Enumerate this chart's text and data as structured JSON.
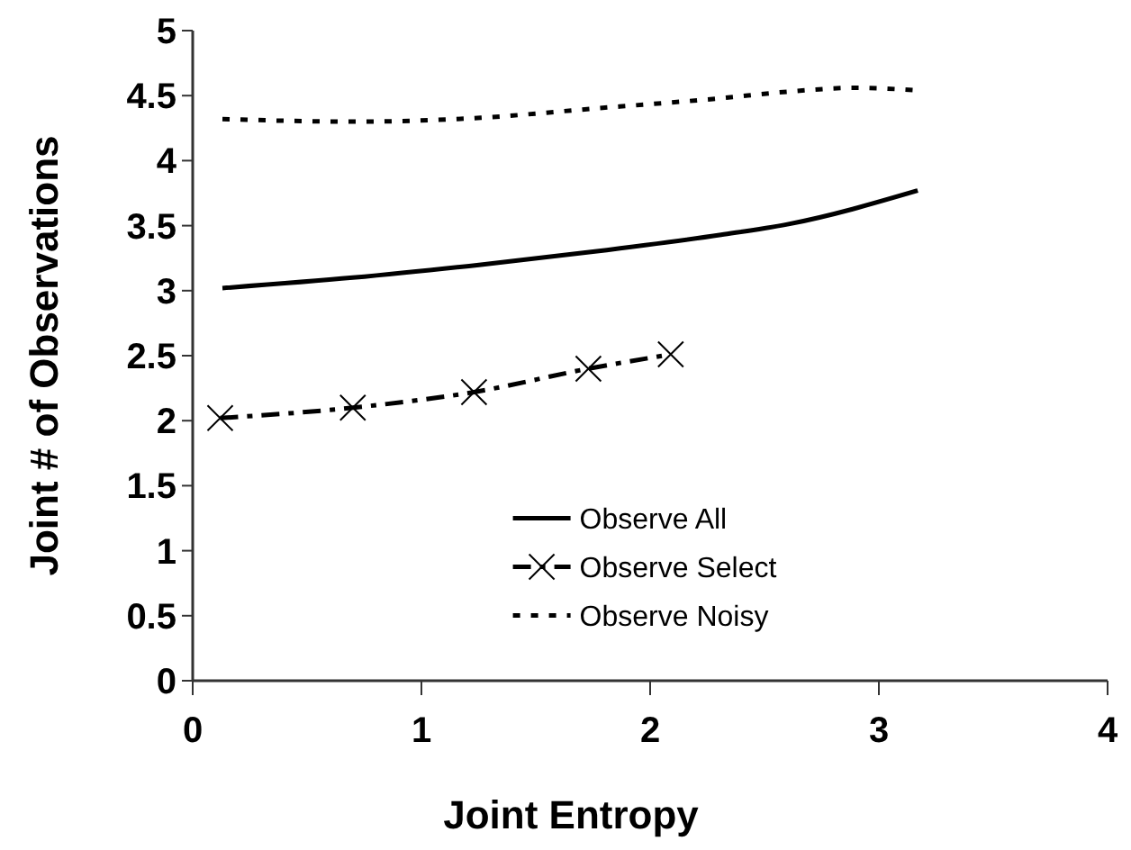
{
  "chart_data": {
    "type": "line",
    "xlabel": "Joint Entropy",
    "ylabel": "Joint # of Observations",
    "xlim": [
      0,
      4
    ],
    "xticks": [
      0,
      1,
      2,
      3,
      4
    ],
    "ylim": [
      0,
      5
    ],
    "yticks": [
      0,
      0.5,
      1,
      1.5,
      2,
      2.5,
      3,
      3.5,
      4,
      4.5,
      5
    ],
    "grid": false,
    "legend": "bottom",
    "series": [
      {
        "name": "Observe All",
        "color": "#000000",
        "line_style": "solid",
        "marker": "none",
        "x": [
          0.13,
          0.7,
          1.26,
          1.75,
          2.31,
          2.6,
          3.17
        ],
        "values": [
          3.02,
          3.1,
          3.2,
          3.3,
          3.43,
          3.51,
          3.77
        ]
      },
      {
        "name": "Observe Select",
        "color": "#000000",
        "line_style": "dashdot",
        "marker": "cross",
        "x": [
          0.12,
          0.7,
          1.23,
          1.73,
          2.09
        ],
        "values": [
          2.02,
          2.1,
          2.22,
          2.4,
          2.51
        ]
      },
      {
        "name": "Observe Noisy",
        "color": "#000000",
        "line_style": "dotted",
        "marker": "none",
        "x": [
          0.13,
          0.7,
          1.26,
          1.75,
          2.31,
          2.6,
          2.9,
          3.17
        ],
        "values": [
          4.32,
          4.3,
          4.33,
          4.4,
          4.48,
          4.53,
          4.56,
          4.54
        ]
      }
    ]
  }
}
